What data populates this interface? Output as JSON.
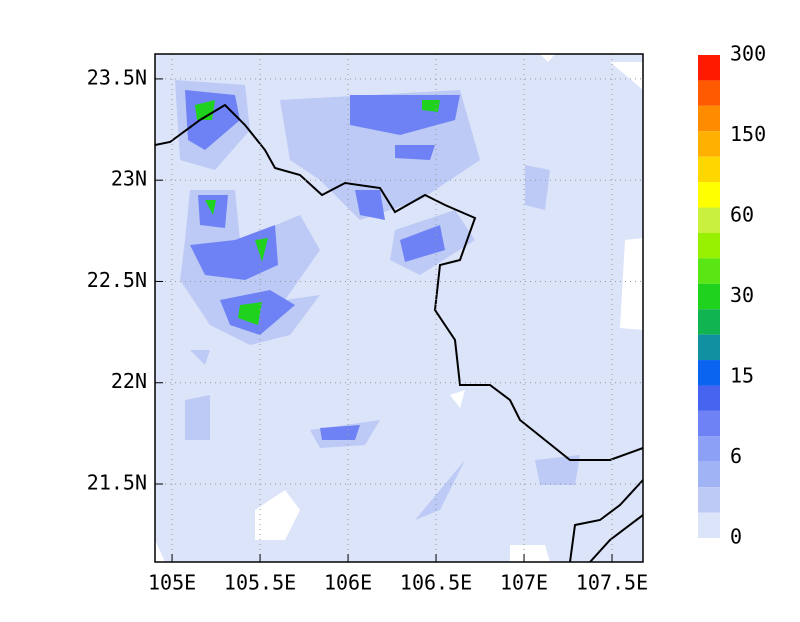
{
  "map": {
    "xlim": [
      104.903,
      107.676
    ],
    "ylim": [
      21.115,
      23.623
    ],
    "xticks": [
      {
        "value": 105,
        "label": "105E"
      },
      {
        "value": 105.5,
        "label": "105.5E"
      },
      {
        "value": 106,
        "label": "106E"
      },
      {
        "value": 106.5,
        "label": "106.5E"
      },
      {
        "value": 107,
        "label": "107E"
      },
      {
        "value": 107.5,
        "label": "107.5E"
      }
    ],
    "yticks": [
      {
        "value": 21.5,
        "label": "21.5N"
      },
      {
        "value": 22,
        "label": "22N"
      },
      {
        "value": 22.5,
        "label": "22.5N"
      },
      {
        "value": 23,
        "label": "23N"
      },
      {
        "value": 23.5,
        "label": "23.5N"
      }
    ],
    "colorbar": {
      "colors": [
        "#ff1a00",
        "#ff5a00",
        "#ff8c00",
        "#ffb000",
        "#ffd700",
        "#ffff00",
        "#c8f03c",
        "#96f000",
        "#5ae614",
        "#1ed21e",
        "#10b450",
        "#1090a0",
        "#0a64f0",
        "#4664f0",
        "#6e82f5",
        "#8ca0f5",
        "#a0b4f5",
        "#bccaf5",
        "#dce4fa"
      ],
      "labels": [
        300,
        150,
        60,
        30,
        15,
        6,
        0
      ]
    }
  }
}
